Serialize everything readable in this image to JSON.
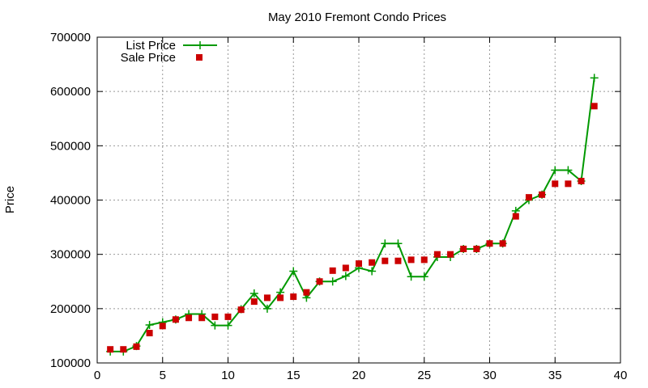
{
  "chart_data": {
    "type": "line",
    "title": "May 2010 Fremont Condo Prices",
    "xlabel": "",
    "ylabel": "Price",
    "xlim": [
      0,
      40
    ],
    "ylim": [
      100000,
      700000
    ],
    "xticks": [
      0,
      5,
      10,
      15,
      20,
      25,
      30,
      35,
      40
    ],
    "yticks": [
      100000,
      200000,
      300000,
      400000,
      500000,
      600000,
      700000
    ],
    "grid": true,
    "legend_position": "top-left",
    "series": [
      {
        "name": "List Price",
        "style": "line+cross",
        "color": "#009900",
        "x": [
          1,
          2,
          3,
          4,
          5,
          6,
          7,
          8,
          9,
          10,
          11,
          12,
          13,
          14,
          15,
          16,
          17,
          18,
          19,
          20,
          21,
          22,
          23,
          24,
          25,
          26,
          27,
          28,
          29,
          30,
          31,
          32,
          33,
          34,
          35,
          36,
          37,
          38
        ],
        "values": [
          121000,
          121000,
          131000,
          170000,
          175000,
          180000,
          190000,
          190000,
          169000,
          169000,
          199000,
          228000,
          200000,
          230000,
          269000,
          220000,
          250000,
          250000,
          260000,
          275000,
          269000,
          320000,
          320000,
          259000,
          259000,
          295000,
          295000,
          310000,
          310000,
          320000,
          320000,
          380000,
          400000,
          410000,
          455000,
          455000,
          435000,
          625000
        ]
      },
      {
        "name": "Sale Price",
        "style": "square-markers",
        "color": "#cc0000",
        "x": [
          1,
          2,
          3,
          4,
          5,
          6,
          7,
          8,
          9,
          10,
          11,
          12,
          13,
          14,
          15,
          16,
          17,
          18,
          19,
          20,
          21,
          22,
          23,
          24,
          25,
          26,
          27,
          28,
          29,
          30,
          31,
          32,
          33,
          34,
          35,
          36,
          37,
          38
        ],
        "values": [
          125000,
          125000,
          130000,
          155000,
          168000,
          180000,
          183000,
          183000,
          185000,
          185000,
          198000,
          213000,
          220000,
          220000,
          222000,
          230000,
          250000,
          270000,
          275000,
          283000,
          285000,
          288000,
          288000,
          290000,
          290000,
          300000,
          300000,
          310000,
          310000,
          320000,
          320000,
          370000,
          405000,
          410000,
          430000,
          430000,
          435000,
          573000
        ]
      }
    ]
  }
}
